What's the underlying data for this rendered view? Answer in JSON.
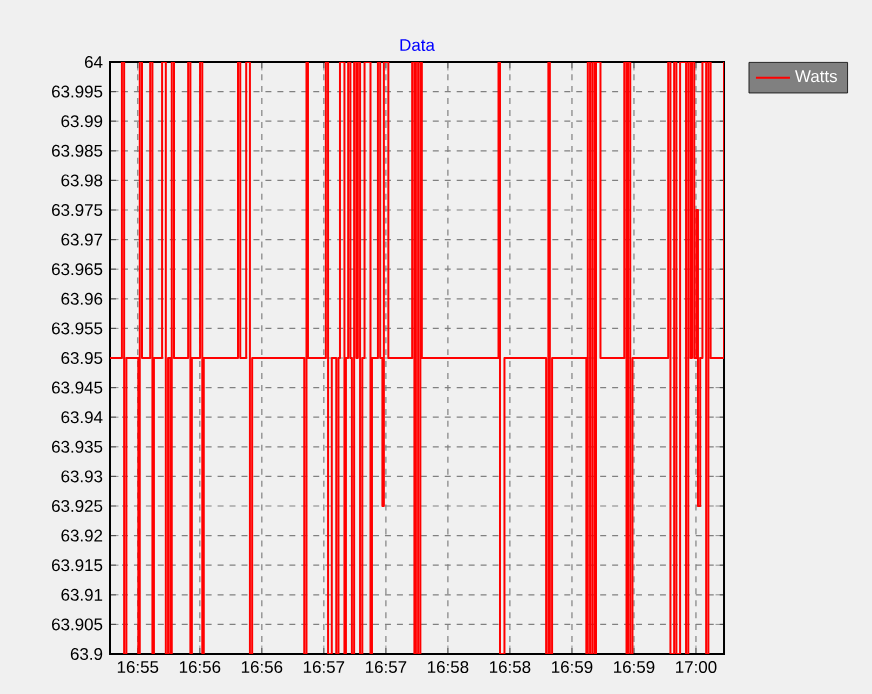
{
  "chart_data": {
    "type": "step",
    "title": "Data",
    "legend": "top right",
    "grid": true,
    "marker": "none",
    "line_style": "solid",
    "xlim": [
      16.9171,
      16.9996
    ],
    "ylim": [
      63.9,
      64
    ],
    "xticks": [
      {
        "value": 16.92083,
        "label": "16:55"
      },
      {
        "value": 16.92917,
        "label": "16:56"
      },
      {
        "value": 16.9375,
        "label": "16:56"
      },
      {
        "value": 16.94583,
        "label": "16:57"
      },
      {
        "value": 16.95417,
        "label": "16:57"
      },
      {
        "value": 16.9625,
        "label": "16:58"
      },
      {
        "value": 16.97083,
        "label": "16:58"
      },
      {
        "value": 16.97917,
        "label": "16:59"
      },
      {
        "value": 16.9875,
        "label": "16:59"
      },
      {
        "value": 16.99583,
        "label": "17:00"
      }
    ],
    "yticks": [
      63.9,
      63.905,
      63.91,
      63.915,
      63.92,
      63.925,
      63.93,
      63.935,
      63.94,
      63.945,
      63.95,
      63.955,
      63.96,
      63.965,
      63.97,
      63.975,
      63.98,
      63.985,
      63.99,
      63.995,
      64
    ],
    "series": [
      {
        "name": "Watts",
        "color": "#ff0000",
        "x": [
          16.9171,
          16.9187,
          16.919,
          16.9193,
          16.9209,
          16.9211,
          16.9214,
          16.9225,
          16.9228,
          16.923,
          16.9241,
          16.9246,
          16.9249,
          16.9252,
          16.9254,
          16.9257,
          16.9276,
          16.9279,
          16.9281,
          16.9292,
          16.9295,
          16.9297,
          16.9343,
          16.9346,
          16.9354,
          16.9359,
          16.9362,
          16.9432,
          16.9435,
          16.9437,
          16.9461,
          16.9464,
          16.9469,
          16.9475,
          16.9478,
          16.948,
          16.9486,
          16.9488,
          16.9491,
          16.9494,
          16.9496,
          16.9499,
          16.9502,
          16.9504,
          16.9507,
          16.951,
          16.9513,
          16.9521,
          16.9523,
          16.9531,
          16.9534,
          16.9537,
          16.9539,
          16.9545,
          16.9577,
          16.958,
          16.9582,
          16.9585,
          16.9588,
          16.959,
          16.9693,
          16.9695,
          16.9701,
          16.9757,
          16.976,
          16.9762,
          16.9765,
          16.9811,
          16.9813,
          16.9816,
          16.9819,
          16.9822,
          16.9824,
          16.983,
          16.9862,
          16.9865,
          16.9867,
          16.987,
          16.9873,
          16.9921,
          16.9924,
          16.9929,
          16.9932,
          16.9937,
          16.9945,
          16.9948,
          16.9951,
          16.9953,
          16.9956,
          16.9959,
          16.9961,
          16.9964,
          16.9967,
          16.9972,
          16.9975,
          16.9978,
          16.9996
        ],
        "values": [
          63.95,
          64,
          63.9,
          63.95,
          63.9,
          64,
          63.95,
          64,
          63.9,
          63.95,
          64,
          63.9,
          63.95,
          63.9,
          64,
          63.95,
          64,
          63.9,
          63.95,
          64,
          63.9,
          63.95,
          64,
          63.95,
          64,
          63.9,
          63.95,
          63.9,
          64,
          63.95,
          64,
          63.9,
          63.95,
          63.9,
          63.95,
          64,
          63.9,
          63.95,
          64,
          63.95,
          63.9,
          64,
          63.95,
          64,
          63.9,
          63.95,
          64,
          63.9,
          63.95,
          64,
          63.95,
          63.925,
          64,
          63.95,
          64,
          63.9,
          64,
          63.9,
          64,
          63.95,
          64,
          63.9,
          63.95,
          63.9,
          64,
          63.9,
          63.95,
          63.9,
          64,
          63.9,
          64,
          63.9,
          64,
          63.95,
          64,
          63.9,
          64,
          63.9,
          63.95,
          64,
          63.9,
          64,
          63.9,
          64,
          63.9,
          64,
          63.95,
          64,
          63.95,
          63.975,
          63.925,
          63.95,
          64,
          63.9,
          64,
          63.95,
          64
        ]
      }
    ]
  }
}
